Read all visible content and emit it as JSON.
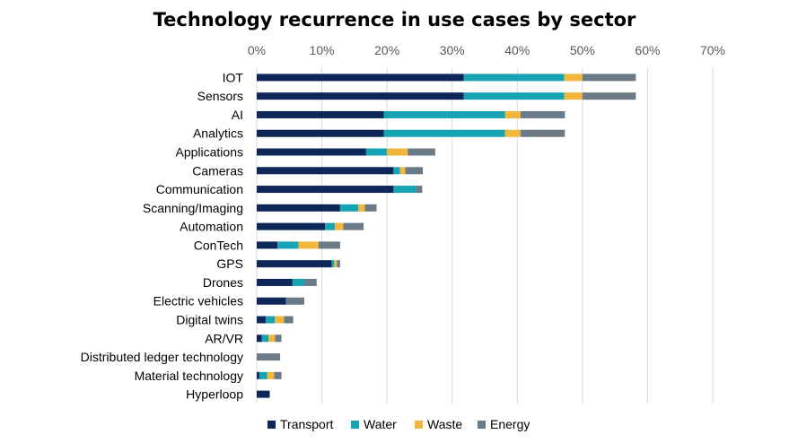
{
  "chart_data": {
    "type": "bar",
    "orientation": "horizontal",
    "stacked": true,
    "title": "Technology recurrence in use cases by sector",
    "xlabel": "",
    "ylabel": "",
    "xlim": [
      0,
      70
    ],
    "x_ticks": [
      "0%",
      "10%",
      "20%",
      "30%",
      "40%",
      "50%",
      "60%",
      "70%"
    ],
    "x_tick_values": [
      0,
      10,
      20,
      30,
      40,
      50,
      60,
      70
    ],
    "grid": true,
    "legend": "bottom",
    "categories": [
      "IOT",
      "Sensors",
      "AI",
      "Analytics",
      "Applications",
      "Cameras",
      "Communication",
      "Scanning/Imaging",
      "Automation",
      "ConTech",
      "GPS",
      "Drones",
      "Electric vehicles",
      "Digital twins",
      "AR/VR",
      "Distributed ledger technology",
      "Material technology",
      "Hyperloop"
    ],
    "series": [
      {
        "name": "Transport",
        "color": "#0d2758",
        "values": [
          31.8,
          31.8,
          19.5,
          19.5,
          16.8,
          21.0,
          21.0,
          12.8,
          10.5,
          3.2,
          11.5,
          5.5,
          4.5,
          1.4,
          0.8,
          0.0,
          0.4,
          2.0
        ]
      },
      {
        "name": "Water",
        "color": "#16a3b3",
        "values": [
          15.4,
          15.4,
          18.6,
          18.6,
          3.2,
          1.0,
          3.5,
          2.8,
          1.5,
          3.2,
          0.4,
          1.8,
          0.0,
          1.4,
          1.0,
          0.0,
          1.2,
          0.0
        ]
      },
      {
        "name": "Waste",
        "color": "#f0b73c",
        "values": [
          2.8,
          2.8,
          2.4,
          2.4,
          3.2,
          0.8,
          0.0,
          1.0,
          1.3,
          3.1,
          0.4,
          0.0,
          0.0,
          1.4,
          1.0,
          0.0,
          1.1,
          0.0
        ]
      },
      {
        "name": "Energy",
        "color": "#6a7a86",
        "values": [
          8.2,
          8.2,
          6.8,
          6.8,
          4.2,
          2.7,
          0.9,
          1.8,
          3.1,
          3.3,
          0.5,
          1.9,
          2.8,
          1.4,
          1.0,
          3.6,
          1.1,
          0.0
        ]
      }
    ]
  }
}
